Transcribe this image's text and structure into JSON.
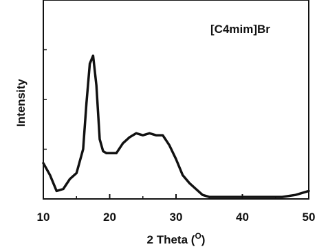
{
  "chart_data": {
    "type": "line",
    "title": "",
    "annotation": "[C4mim]Br",
    "xlabel": "2 Theta (",
    "xlabel_sup": "O",
    "xlabel_end": ")",
    "ylabel": "Intensity",
    "xlim": [
      10,
      50
    ],
    "ylim": [
      0,
      100
    ],
    "x_ticks": [
      10,
      20,
      30,
      40,
      50
    ],
    "x_tick_labels": [
      "10",
      "20",
      "30",
      "40",
      "50"
    ],
    "grid": false,
    "series": [
      {
        "x": [
          10,
          11,
          12,
          13,
          14,
          15,
          16,
          16.5,
          17,
          17.5,
          18,
          18.5,
          19,
          19.5,
          20,
          21,
          22,
          23,
          24,
          25,
          26,
          27,
          28,
          29,
          30,
          31,
          32,
          33,
          34,
          35,
          36,
          38,
          40,
          42,
          44,
          46,
          48,
          50
        ],
        "y": [
          18,
          12,
          4,
          5,
          10,
          13,
          25,
          48,
          68,
          72,
          57,
          30,
          24,
          23,
          23,
          23,
          28,
          31,
          33,
          32,
          33,
          32,
          32,
          27,
          20,
          12,
          8,
          5,
          2,
          1,
          1,
          1,
          1,
          1,
          1,
          1,
          2,
          4
        ]
      }
    ],
    "colors": {
      "line": "#111111",
      "axis": "#111111"
    }
  }
}
